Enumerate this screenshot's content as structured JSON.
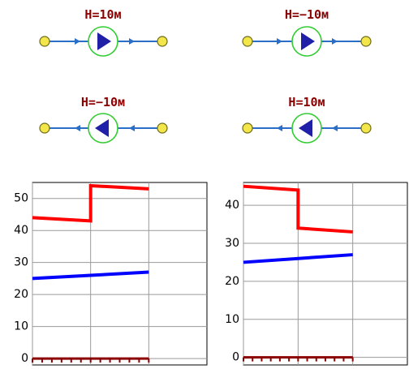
{
  "colors": {
    "pipe": "#2a6ec8",
    "pump_ring": "#33cc33",
    "pump_triangle": "#1f1fa8",
    "node_fill": "#f2e64a",
    "node_stroke": "#6e6a1a",
    "label": "#8b0000",
    "series_red": "#ff0000",
    "series_blue": "#0000ff",
    "baseline": "#8b0000",
    "grid": "#9a9a9a",
    "frame": "#000000"
  },
  "pumps": [
    {
      "label": "H=10м",
      "direction": "right",
      "flow_arrows": "right"
    },
    {
      "label": "H=−10м",
      "direction": "right",
      "flow_arrows": "right"
    },
    {
      "label": "H=−10м",
      "direction": "left",
      "flow_arrows": "left"
    },
    {
      "label": "H=10м",
      "direction": "left",
      "flow_arrows": "left"
    }
  ],
  "chart_data": [
    {
      "type": "line",
      "title": "",
      "xlabel": "",
      "ylabel": "",
      "ylim": [
        -2,
        55
      ],
      "y_ticks": [
        "0",
        "10",
        "20",
        "30",
        "40",
        "50"
      ],
      "x": [
        0,
        1,
        2
      ],
      "xlim": [
        0,
        3
      ],
      "grid": true,
      "series": [
        {
          "color": "#ff0000",
          "points": [
            [
              0,
              44
            ],
            [
              1,
              43
            ],
            [
              1,
              54
            ],
            [
              2,
              53
            ]
          ]
        },
        {
          "color": "#0000ff",
          "points": [
            [
              0,
              25
            ],
            [
              2,
              27
            ]
          ]
        },
        {
          "color": "#8b0000",
          "style": "baseline-ticks",
          "points": [
            [
              0,
              0
            ],
            [
              2,
              0
            ]
          ]
        }
      ]
    },
    {
      "type": "line",
      "title": "",
      "xlabel": "",
      "ylabel": "",
      "ylim": [
        -2,
        46
      ],
      "y_ticks": [
        "0",
        "10",
        "20",
        "30",
        "40"
      ],
      "x": [
        0,
        1,
        2
      ],
      "xlim": [
        0,
        3
      ],
      "grid": true,
      "series": [
        {
          "color": "#ff0000",
          "points": [
            [
              0,
              45
            ],
            [
              1,
              44
            ],
            [
              1,
              34
            ],
            [
              2,
              33
            ]
          ]
        },
        {
          "color": "#0000ff",
          "points": [
            [
              0,
              25
            ],
            [
              2,
              27
            ]
          ]
        },
        {
          "color": "#8b0000",
          "style": "baseline-ticks",
          "points": [
            [
              0,
              0
            ],
            [
              2,
              0
            ]
          ]
        }
      ]
    }
  ]
}
